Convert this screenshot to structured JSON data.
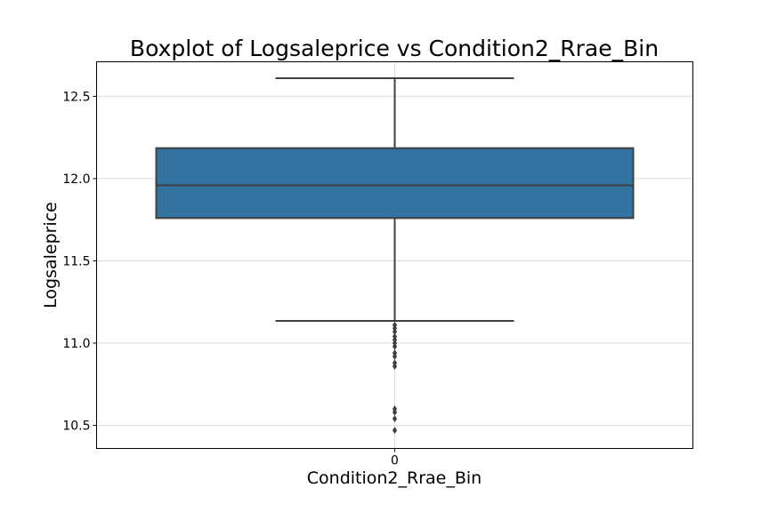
{
  "chart_data": {
    "type": "box",
    "title": "Boxplot of Logsaleprice vs Condition2_Rrae_Bin",
    "xlabel": "Condition2_Rrae_Bin",
    "ylabel": "Logsaleprice",
    "categories": [
      "0"
    ],
    "ylim": [
      10.36,
      12.71
    ],
    "yticks": [
      10.5,
      11.0,
      11.5,
      12.0,
      12.5
    ],
    "ytick_labels": [
      "10.5",
      "11.0",
      "11.5",
      "12.0",
      "12.5"
    ],
    "grid": true,
    "boxes": [
      {
        "category": "0",
        "whisker_low": 11.135,
        "q1": 11.76,
        "median": 11.96,
        "q3": 12.185,
        "whisker_high": 12.61,
        "outliers": [
          11.11,
          11.09,
          11.07,
          11.04,
          11.02,
          11.0,
          10.98,
          10.94,
          10.92,
          10.88,
          10.86,
          10.6,
          10.58,
          10.54,
          10.47
        ]
      }
    ],
    "colors": {
      "box_fill": "#3274a1",
      "box_edge": "#3f3f3f",
      "grid": "#dcdcdc",
      "axis": "#000000"
    }
  }
}
